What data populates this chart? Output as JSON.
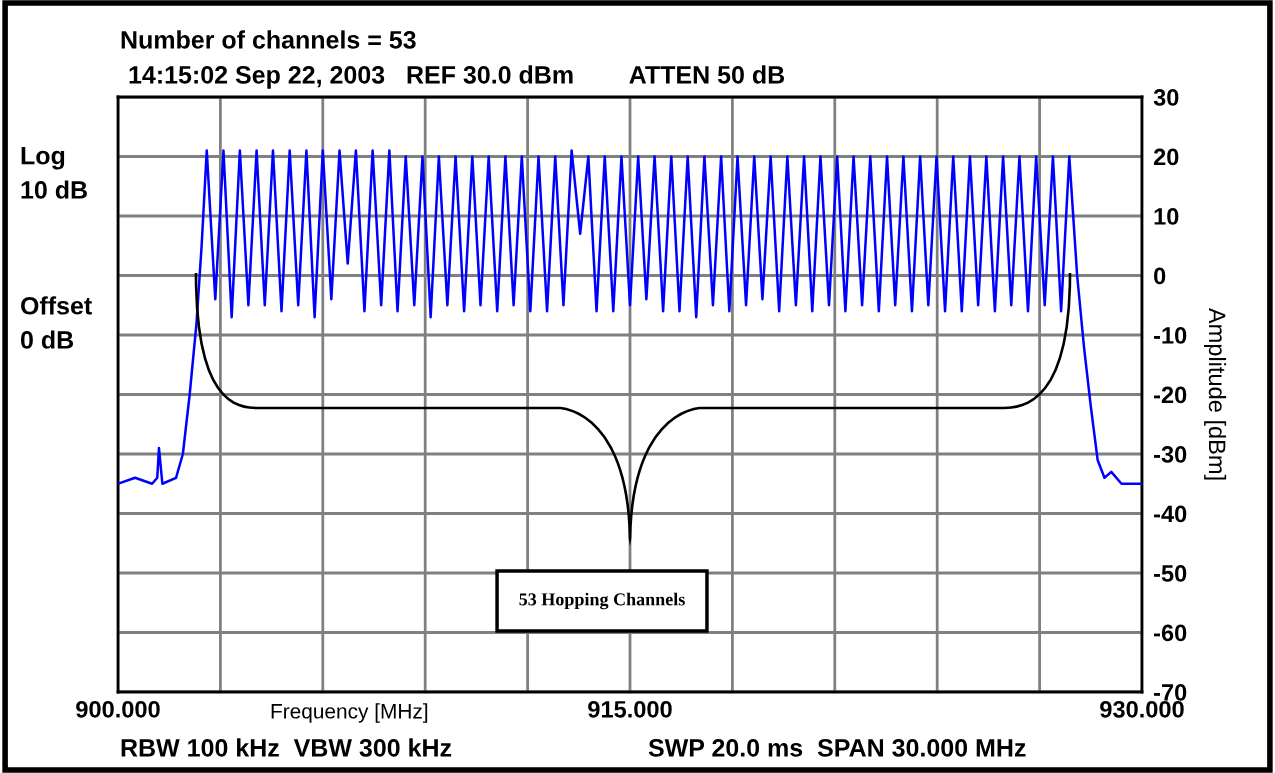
{
  "chart_data": {
    "type": "line",
    "title": "Number of channels = 53",
    "subtitle": "14:15:02 Sep 22, 2003   REF 30.0 dBm        ATTEN 50 dB",
    "xlabel": "Frequency [MHz]",
    "ylabel": "Amplitude [dBm]",
    "annotations": [
      "Log\n10 dB",
      "Offset\n0 dB",
      "RBW 100 kHz  VBW 300 kHz",
      "SWP 20.0 ms  SPAN 30.000 MHz",
      "53 Hopping Channels"
    ],
    "series": [
      {
        "color": "#0000ff",
        "x": [
          900.0,
          900.5,
          901.0,
          901.15,
          901.2,
          901.3,
          901.7,
          901.9,
          902.1,
          902.3,
          902.45,
          902.6,
          902.85,
          903.09,
          903.33,
          903.57,
          903.82,
          904.06,
          904.3,
          904.54,
          904.79,
          905.03,
          905.28,
          905.52,
          905.76,
          906.0,
          906.25,
          906.49,
          906.73,
          906.97,
          907.22,
          907.46,
          907.71,
          907.95,
          908.19,
          908.43,
          908.68,
          908.92,
          909.16,
          909.4,
          909.65,
          909.89,
          910.14,
          910.38,
          910.62,
          910.86,
          911.11,
          911.35,
          911.59,
          911.83,
          912.08,
          912.32,
          912.57,
          912.81,
          913.05,
          913.29,
          913.54,
          913.78,
          914.02,
          914.26,
          914.51,
          914.75,
          915.0,
          915.24,
          915.48,
          915.72,
          915.97,
          916.21,
          916.45,
          916.69,
          916.94,
          917.18,
          917.43,
          917.67,
          917.91,
          918.15,
          918.4,
          918.64,
          918.88,
          919.12,
          919.37,
          919.61,
          919.86,
          920.1,
          920.34,
          920.58,
          920.83,
          921.07,
          921.31,
          921.55,
          921.8,
          922.04,
          922.29,
          922.53,
          922.77,
          923.01,
          923.26,
          923.5,
          923.74,
          923.98,
          924.23,
          924.47,
          924.72,
          924.96,
          925.2,
          925.44,
          925.69,
          925.93,
          926.17,
          926.41,
          926.66,
          926.9,
          927.15,
          927.39,
          927.63,
          927.87,
          928.1,
          928.3,
          928.5,
          928.7,
          928.9,
          929.1,
          929.4,
          930.0
        ],
        "values": [
          -35,
          -34,
          -35,
          -34,
          -29,
          -35,
          -34,
          -30,
          -20,
          -8,
          5,
          21,
          -4,
          21,
          -7,
          21,
          -5,
          21,
          -5,
          21,
          -6,
          21,
          -5,
          21,
          -7,
          21,
          -4,
          21,
          2,
          21,
          -6,
          21,
          -5,
          21,
          -6,
          20,
          -5,
          20,
          -7,
          20,
          -5,
          20,
          -6,
          20,
          -5,
          20,
          -6,
          20,
          -5,
          20,
          -6,
          20,
          -6,
          20,
          -5,
          21,
          7,
          20,
          -6,
          20,
          -6,
          20,
          -5,
          20,
          -4,
          20,
          -6,
          20,
          -6,
          20,
          -7,
          20,
          -5,
          20,
          -6,
          20,
          -5,
          20,
          -4,
          20,
          -6,
          20,
          -5,
          20,
          -6,
          20,
          -5,
          20,
          -6,
          20,
          -5,
          20,
          -6,
          20,
          -5,
          20,
          -6,
          20,
          -5,
          20,
          -6,
          20,
          -6,
          20,
          -5,
          20,
          -6,
          20,
          -5,
          20,
          -6,
          20,
          -5,
          20,
          -6,
          20,
          0,
          -12,
          -22,
          -31,
          -34,
          -33,
          -35,
          -35
        ]
      }
    ],
    "xlim": [
      900,
      930
    ],
    "xticks": [
      {
        "value": 900,
        "label": "900.000"
      },
      {
        "value": 903,
        "label": null
      },
      {
        "value": 906,
        "label": null
      },
      {
        "value": 909,
        "label": null
      },
      {
        "value": 912,
        "label": null
      },
      {
        "value": 915,
        "label": "915.000"
      },
      {
        "value": 918,
        "label": null
      },
      {
        "value": 921,
        "label": null
      },
      {
        "value": 924,
        "label": null
      },
      {
        "value": 927,
        "label": null
      },
      {
        "value": 930,
        "label": "930.000"
      }
    ],
    "ylim": [
      -70,
      30
    ],
    "yticks": [
      30,
      20,
      10,
      0,
      -10,
      -20,
      -30,
      -40,
      -50,
      -60,
      -70
    ],
    "grid": true
  }
}
